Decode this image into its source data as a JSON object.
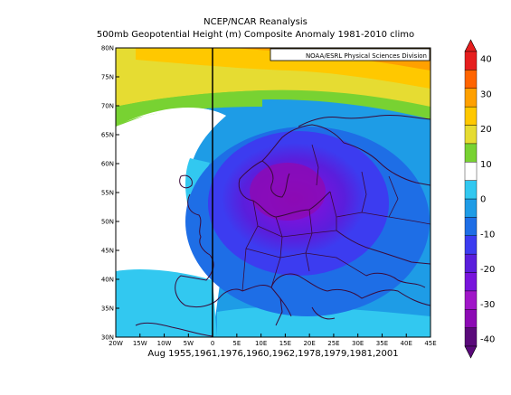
{
  "header": {
    "title_line1": "NCEP/NCAR Reanalysis",
    "title_line2": "500mb Geopotential Height (m) Composite Anomaly 1981-2010 climo"
  },
  "map": {
    "credit": "NOAA/ESRL Physical Sciences Division",
    "x_axis_label": "Aug 1955,1961,1976,1960,1962,1978,1979,1981,2001",
    "lat_range": [
      30,
      80
    ],
    "lon_range": [
      -20,
      45
    ],
    "lat_ticks": [
      "30N",
      "35N",
      "40N",
      "45N",
      "50N",
      "55N",
      "60N",
      "65N",
      "70N",
      "75N",
      "80N"
    ],
    "lon_ticks": [
      "20W",
      "15W",
      "10W",
      "5W",
      "0",
      "5E",
      "10E",
      "15E",
      "20E",
      "25E",
      "30E",
      "35E",
      "40E",
      "45E"
    ],
    "anomaly_pattern": "negative center near 15E 58N, positive band along northern edge",
    "grid": false
  },
  "colorbar": {
    "labels": [
      "40",
      "30",
      "20",
      "10",
      "0",
      "-10",
      "-20",
      "-30",
      "-40"
    ],
    "levels": [
      -40,
      -35,
      -30,
      -25,
      -20,
      -15,
      -10,
      -5,
      5,
      10,
      15,
      20,
      25,
      30,
      35,
      40
    ],
    "colors": [
      "#5a0a7a",
      "#8c0ab4",
      "#a016c8",
      "#7814dc",
      "#5a1edc",
      "#3c3cf0",
      "#1e6ee6",
      "#1e9ce6",
      "#32c8f0",
      "#ffffff",
      "#78d232",
      "#e6dc32",
      "#ffc800",
      "#ffa000",
      "#ff6400",
      "#e61e1e"
    ]
  },
  "palette": {
    "frame": "#000000",
    "coast": "#3a0a3a",
    "meridian": "#000000"
  }
}
